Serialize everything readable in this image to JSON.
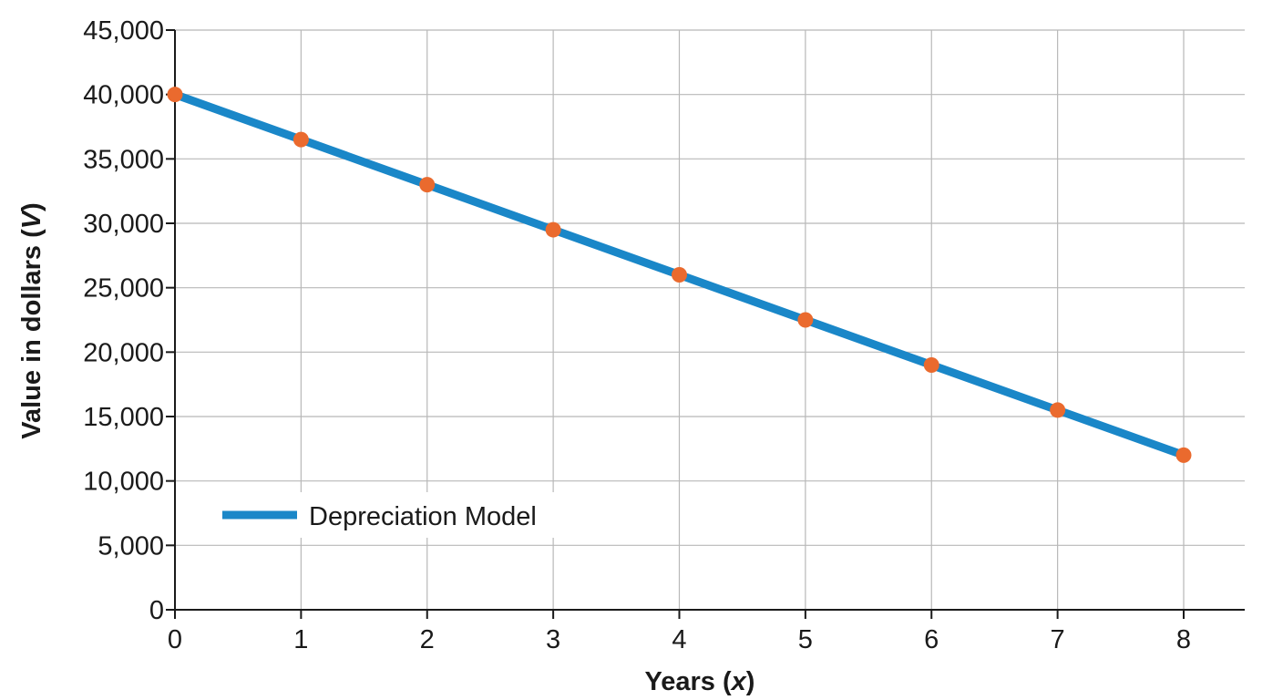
{
  "chart_data": {
    "type": "line",
    "x": [
      0,
      1,
      2,
      3,
      4,
      5,
      6,
      7,
      8
    ],
    "series": [
      {
        "name": "Depreciation Model",
        "values": [
          40000,
          36500,
          33000,
          29500,
          26000,
          22500,
          19000,
          15500,
          12000
        ],
        "line_color": "#1a87c8",
        "marker_color": "#ea6a2e"
      }
    ],
    "xlabel_parts": [
      {
        "text": "Years (",
        "italic": false
      },
      {
        "text": "x",
        "italic": true
      },
      {
        "text": ")",
        "italic": false
      }
    ],
    "ylabel_parts": [
      {
        "text": "Value in dollars (",
        "italic": false
      },
      {
        "text": "V",
        "italic": true
      },
      {
        "text": ")",
        "italic": false
      }
    ],
    "xlim": [
      0,
      8
    ],
    "ylim": [
      0,
      45000
    ],
    "xticks": [
      0,
      1,
      2,
      3,
      4,
      5,
      6,
      7,
      8
    ],
    "xtick_labels": [
      "0",
      "1",
      "2",
      "3",
      "4",
      "5",
      "6",
      "7",
      "8"
    ],
    "yticks": [
      0,
      5000,
      10000,
      15000,
      20000,
      25000,
      30000,
      35000,
      40000,
      45000
    ],
    "ytick_labels": [
      "0",
      "5,000",
      "10,000",
      "15,000",
      "20,000",
      "25,000",
      "30,000",
      "35,000",
      "40,000",
      "45,000"
    ],
    "grid": true,
    "grid_color": "#b8b8b8",
    "axis_color": "#1a1a1a",
    "legend": {
      "position": "lower-left",
      "label": "Depreciation Model"
    }
  }
}
